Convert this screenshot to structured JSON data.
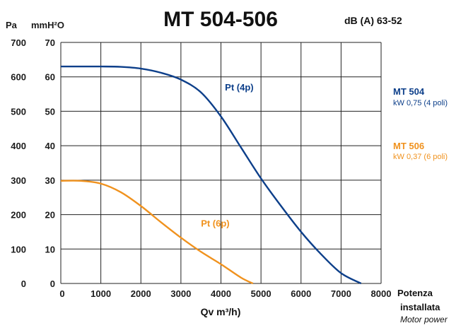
{
  "chart_data": {
    "type": "line",
    "title": "MT 504-506",
    "noise": "dB (A) 63-52",
    "y_unit_left": "Pa",
    "y_unit_right": "mmH²O",
    "xlabel": "Qv m³/h)",
    "xlim": [
      0,
      8000
    ],
    "ylim": [
      0,
      700
    ],
    "ylim_secondary": [
      0,
      70
    ],
    "x_ticks": [
      "0",
      "1000",
      "2000",
      "3000",
      "4000",
      "5000",
      "6000",
      "7000",
      "8000"
    ],
    "y_ticks_pa": [
      "0",
      "100",
      "200",
      "300",
      "400",
      "500",
      "600",
      "700"
    ],
    "y_ticks_mm": [
      "0",
      "10",
      "20",
      "30",
      "40",
      "50",
      "60",
      "70"
    ],
    "grid": true,
    "legend_side": {
      "title_bold": "Potenza",
      "title_bold2": "installata",
      "title_italic": "Motor power"
    },
    "series": [
      {
        "name": "Pt (4p)",
        "model": "MT 504",
        "power": "kW 0,75 (4 poli)",
        "color": "#0d3f8a",
        "x": [
          0,
          1000,
          1500,
          2000,
          2500,
          3000,
          3500,
          4000,
          4500,
          5000,
          5500,
          6000,
          6500,
          7000,
          7500
        ],
        "y": [
          630,
          630,
          629,
          624,
          612,
          592,
          555,
          485,
          395,
          305,
          225,
          150,
          85,
          30,
          0
        ]
      },
      {
        "name": "Pt (6p)",
        "model": "MT 506",
        "power": "kW 0,37 (6 poli)",
        "color": "#f0921e",
        "x": [
          0,
          500,
          1000,
          1500,
          2000,
          2500,
          3000,
          3500,
          4000,
          4500,
          4800
        ],
        "y": [
          298,
          298,
          290,
          265,
          225,
          178,
          133,
          92,
          56,
          17,
          0
        ]
      }
    ]
  }
}
